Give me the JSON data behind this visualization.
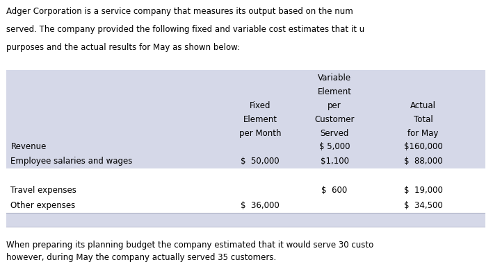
{
  "intro_text_line1": "Adger Corporation is a service company that measures its output based on the num",
  "intro_text_line2": "served. The company provided the following fixed and variable cost estimates that it u",
  "intro_text_line3": "purposes and the actual results for May as shown below:",
  "footer_text_line1": "When preparing its planning budget the company estimated that it would serve 30 custo",
  "footer_text_line2": "however, during May the company actually served 35 customers.",
  "table_bg_color": "#d5d8e8",
  "table_white": "#ffffff",
  "header_col1_lines": [
    "Fixed",
    "Element",
    "per Month"
  ],
  "header_col2_lines": [
    "Variable",
    "Element",
    "per",
    "Customer",
    "Served"
  ],
  "header_col3_lines": [
    "Actual",
    "Total",
    "for May"
  ],
  "rows": [
    {
      "label": "Revenue",
      "fixed": "",
      "variable": "$ 5,000",
      "actual": "$160,000",
      "bg": "#d5d8e8"
    },
    {
      "label": "Employee salaries and wages",
      "fixed": "$  50,000",
      "variable": "$1,100",
      "actual": "$  88,000",
      "bg": "#d5d8e8"
    },
    {
      "label": "",
      "fixed": "",
      "variable": "",
      "actual": "",
      "bg": "#ffffff"
    },
    {
      "label": "Travel expenses",
      "fixed": "",
      "variable": "$  600",
      "actual": "$  19,000",
      "bg": "#ffffff"
    },
    {
      "label": "Other expenses",
      "fixed": "$  36,000",
      "variable": "",
      "actual": "$  34,500",
      "bg": "#ffffff"
    },
    {
      "label": "",
      "fixed": "",
      "variable": "",
      "actual": "",
      "bg": "#d5d8e8"
    }
  ],
  "font_size": 8.5,
  "font_family": "DejaVu Sans"
}
